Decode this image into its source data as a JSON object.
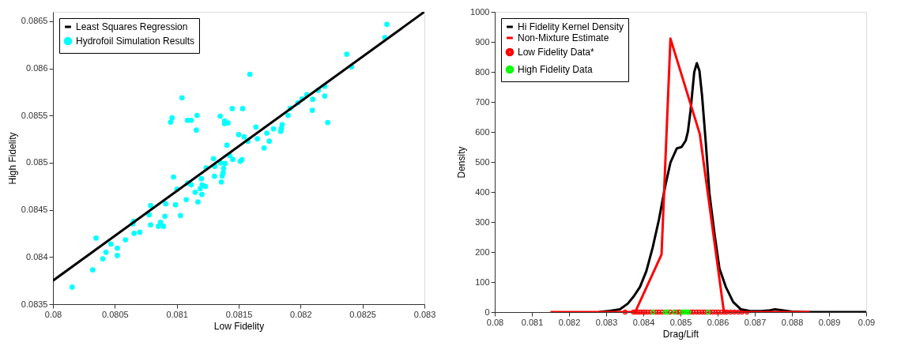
{
  "chart_data": [
    {
      "type": "scatter",
      "xlabel": "Low Fidelity",
      "ylabel": "High Fidelity",
      "xlim": [
        0.08,
        0.083
      ],
      "ylim": [
        0.0835,
        0.0866
      ],
      "xticks": [
        0.08,
        0.0805,
        0.081,
        0.0815,
        0.082,
        0.0825,
        0.083
      ],
      "yticks": [
        0.0835,
        0.084,
        0.0845,
        0.085,
        0.0855,
        0.086,
        0.0865
      ],
      "legend": "top left",
      "grid": false,
      "series": [
        {
          "name": "Least Squares Regression",
          "type": "line",
          "color": "#000000",
          "x": [
            0.08,
            0.083
          ],
          "values": [
            0.08375,
            0.0866
          ]
        },
        {
          "name": "Hydrofoil Simulation Results",
          "type": "scatter",
          "color": "#00ffff",
          "x": [
            0.082697,
            0.082681,
            0.082373,
            0.082411,
            0.08159,
            0.082195,
            0.082143,
            0.08205,
            0.082195,
            0.082098,
            0.082012,
            0.081978,
            0.082095,
            0.081916,
            0.081899,
            0.082219,
            0.081042,
            0.080962,
            0.08095,
            0.081086,
            0.081116,
            0.081164,
            0.081158,
            0.081351,
            0.081448,
            0.081532,
            0.081387,
            0.081386,
            0.081414,
            0.081639,
            0.081851,
            0.081845,
            0.081839,
            0.081781,
            0.081727,
            0.0815,
            0.081544,
            0.081651,
            0.081574,
            0.081747,
            0.081405,
            0.080155,
            0.080321,
            0.080348,
            0.080402,
            0.080428,
            0.080468,
            0.08052,
            0.08052,
            0.080586,
            0.080645,
            0.080652,
            0.080655,
            0.080701,
            0.080777,
            0.080789,
            0.080789,
            0.080851,
            0.080869,
            0.080892,
            0.080904,
            0.08091,
            0.080974,
            0.08099,
            0.081002,
            0.08103,
            0.081077,
            0.081089,
            0.081116,
            0.081149,
            0.081171,
            0.081189,
            0.081199,
            0.081203,
            0.081205,
            0.081231,
            0.081237,
            0.081297,
            0.081305,
            0.081307,
            0.081354,
            0.08136,
            0.081367,
            0.081375,
            0.081378,
            0.08139,
            0.081426,
            0.081452,
            0.081512,
            0.081526,
            0.081705
          ],
          "values": [
            0.086467,
            0.086326,
            0.086151,
            0.086016,
            0.085938,
            0.085811,
            0.085769,
            0.085721,
            0.085707,
            0.085673,
            0.085678,
            0.085636,
            0.085556,
            0.085577,
            0.085502,
            0.085426,
            0.085689,
            0.085476,
            0.085431,
            0.08545,
            0.08545,
            0.085502,
            0.085346,
            0.085494,
            0.085574,
            0.085574,
            0.085442,
            0.085415,
            0.085423,
            0.085378,
            0.085404,
            0.085365,
            0.085333,
            0.085359,
            0.085314,
            0.085298,
            0.085275,
            0.085255,
            0.085229,
            0.085229,
            0.085187,
            0.083681,
            0.083864,
            0.084201,
            0.083981,
            0.08405,
            0.084138,
            0.084095,
            0.084016,
            0.084183,
            0.084353,
            0.084379,
            0.084251,
            0.084263,
            0.084448,
            0.084546,
            0.084342,
            0.084326,
            0.084369,
            0.084326,
            0.084432,
            0.084565,
            0.084849,
            0.084554,
            0.084719,
            0.08444,
            0.084608,
            0.084785,
            0.084767,
            0.084687,
            0.084584,
            0.084725,
            0.084831,
            0.084663,
            0.084765,
            0.084749,
            0.084945,
            0.085043,
            0.084857,
            0.084961,
            0.084998,
            0.084796,
            0.08486,
            0.084892,
            0.08494,
            0.084992,
            0.085078,
            0.085036,
            0.085016,
            0.085032,
            0.085157
          ]
        }
      ]
    },
    {
      "type": "line",
      "xlabel": "Drag/Lift",
      "ylabel": "Density",
      "xlim": [
        0.08,
        0.09
      ],
      "ylim": [
        0,
        1000
      ],
      "xticks": [
        0.08,
        0.081,
        0.082,
        0.083,
        0.084,
        0.085,
        0.086,
        0.087,
        0.088,
        0.089,
        0.09
      ],
      "yticks": [
        0,
        100,
        200,
        300,
        400,
        500,
        600,
        700,
        800,
        900,
        1000
      ],
      "legend": "top left",
      "grid": false,
      "series": [
        {
          "name": "Hi Fidelity Kernel Density",
          "type": "line",
          "color": "#000000",
          "x": [
            0.0828,
            0.08303,
            0.08337,
            0.08358,
            0.08374,
            0.08391,
            0.08408,
            0.08425,
            0.08442,
            0.08459,
            0.08473,
            0.0849,
            0.08503,
            0.08514,
            0.0852,
            0.08527,
            0.08537,
            0.08544,
            0.08551,
            0.08558,
            0.08568,
            0.08578,
            0.08592,
            0.08605,
            0.08622,
            0.08642,
            0.08663,
            0.0869,
            0.08717,
            0.08737,
            0.08754,
            0.08778,
            0.08805,
            0.08839,
            0.09
          ],
          "values": [
            0,
            3,
            9,
            28,
            52,
            84,
            136,
            214,
            308,
            420,
            498,
            545,
            550,
            571,
            601,
            670,
            799,
            829,
            804,
            722,
            567,
            394,
            257,
            145,
            84,
            33,
            9,
            3,
            3,
            5,
            9,
            5,
            1,
            0,
            0
          ]
        },
        {
          "name": "Non-Mixture Estimate",
          "type": "line",
          "color": "#ff0000",
          "x": [
            0.0815,
            0.08378,
            0.08449,
            0.08473,
            0.08552,
            0.08617,
            0.08848
          ],
          "values": [
            0,
            0,
            192,
            911,
            593,
            0,
            0
          ]
        },
        {
          "name": "Low Fidelity Data*",
          "type": "scatter",
          "color": "#ff0000",
          "x": [
            0.08351,
            0.08373,
            0.08379,
            0.08386,
            0.08392,
            0.08399,
            0.08405,
            0.08412,
            0.0842,
            0.08428,
            0.08435,
            0.08442,
            0.0845,
            0.08458,
            0.08465,
            0.08472,
            0.08483,
            0.0849,
            0.08497,
            0.08505,
            0.08512,
            0.0852,
            0.08528,
            0.08535,
            0.08543,
            0.0855,
            0.08558,
            0.08565,
            0.08572,
            0.0858,
            0.08587,
            0.08595,
            0.08602,
            0.0861,
            0.08618,
            0.08625,
            0.08635,
            0.08645,
            0.08656,
            0.08666,
            0.08679
          ],
          "values": [
            0,
            0,
            0,
            0,
            0,
            0,
            0,
            0,
            0,
            0,
            0,
            0,
            0,
            0,
            0,
            0,
            0,
            0,
            0,
            0,
            0,
            0,
            0,
            0,
            0,
            0,
            0,
            0,
            0,
            0,
            0,
            0,
            0,
            0,
            0,
            0,
            0,
            0,
            0,
            0,
            0
          ]
        },
        {
          "name": "High Fidelity Data",
          "type": "scatter",
          "color": "#00ff00",
          "x": [
            0.08426,
            0.08459,
            0.08465,
            0.08485,
            0.08505,
            0.0851,
            0.08514,
            0.08518,
            0.08522,
            0.08574
          ],
          "values": [
            0,
            0,
            0,
            0,
            0,
            0,
            0,
            0,
            0,
            0
          ]
        }
      ]
    }
  ]
}
